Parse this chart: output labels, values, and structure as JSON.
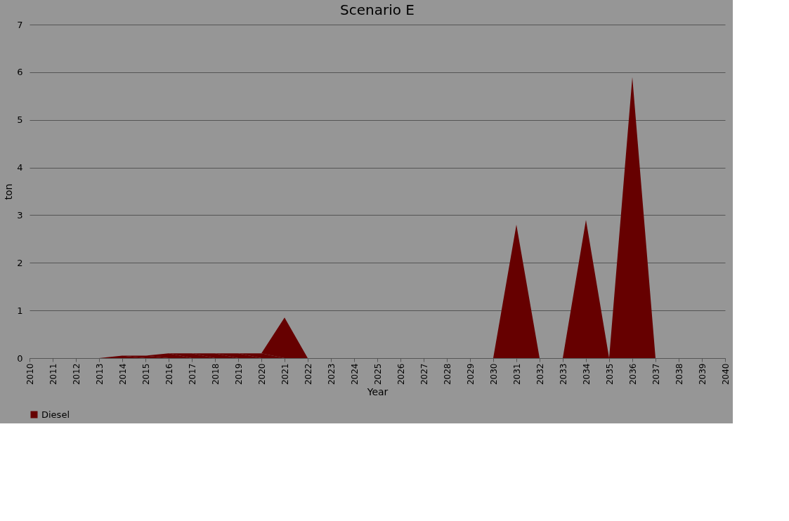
{
  "chart_data": {
    "type": "area",
    "title": "Scenario E",
    "xlabel": "Year",
    "ylabel": "ton",
    "categories": [
      "2010",
      "2011",
      "2012",
      "2013",
      "2014",
      "2015",
      "2016",
      "2017",
      "2018",
      "2019",
      "2020",
      "2021",
      "2022",
      "2023",
      "2024",
      "2025",
      "2026",
      "2027",
      "2028",
      "2029",
      "2030",
      "2031",
      "2032",
      "2033",
      "2034",
      "2035",
      "2036",
      "2037",
      "2038",
      "2039",
      "2040"
    ],
    "series": [
      {
        "name": "Diesel",
        "color": "#660000",
        "values": [
          0,
          0,
          0,
          0,
          0.05,
          0.05,
          0.1,
          0.1,
          0.1,
          0.1,
          0.1,
          0.85,
          0,
          0,
          0,
          0,
          0,
          0,
          0,
          0,
          0,
          2.8,
          0,
          0,
          2.9,
          0,
          5.9,
          0,
          0,
          0,
          0
        ]
      }
    ],
    "ylim": [
      0,
      7
    ],
    "yticks": [
      0,
      1,
      2,
      3,
      4,
      5,
      6,
      7
    ],
    "grid": "y",
    "legend": "bottom"
  }
}
